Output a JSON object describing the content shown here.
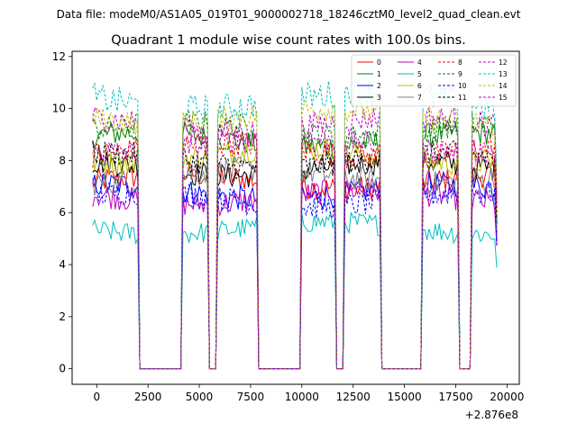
{
  "figure": {
    "suptitle": "Data file: modeM0/AS1A05_019T01_9000002718_18246cztM0_level2_quad_clean.evt",
    "offset_label": "+2.876e8"
  },
  "chart_data": {
    "type": "line",
    "title": "Quadrant 1 module wise count rates with 100.0s bins.",
    "xlabel": "",
    "ylabel": "",
    "x_offset": 287600000,
    "xlim": [
      -1200,
      20600
    ],
    "ylim": [
      -0.6,
      12.2
    ],
    "xticks": [
      0,
      2500,
      5000,
      7500,
      10000,
      12500,
      15000,
      17500,
      20000
    ],
    "yticks": [
      0,
      2,
      4,
      6,
      8,
      10,
      12
    ],
    "xtick_labels": [
      "0",
      "2500",
      "5000",
      "7500",
      "10000",
      "12500",
      "15000",
      "17500",
      "20000"
    ],
    "ytick_labels": [
      "0",
      "2",
      "4",
      "6",
      "8",
      "10",
      "12"
    ],
    "grid": false,
    "legend_position": "top-right",
    "legend_columns": 4,
    "x_start": -200,
    "x_step": 100,
    "active_intervals": [
      [
        -200,
        2000
      ],
      [
        4200,
        5400
      ],
      [
        5900,
        7800
      ],
      [
        10000,
        11600
      ],
      [
        12100,
        13800
      ],
      [
        15900,
        17600
      ],
      [
        18300,
        19500
      ]
    ],
    "series": [
      {
        "name": "0",
        "color": "#ff0000",
        "dash": "solid",
        "mean": 7.2,
        "amp": 0.35
      },
      {
        "name": "1",
        "color": "#008000",
        "dash": "solid",
        "mean": 8.8,
        "amp": 0.35
      },
      {
        "name": "2",
        "color": "#0000ff",
        "dash": "solid",
        "mean": 6.8,
        "amp": 0.35
      },
      {
        "name": "3",
        "color": "#000000",
        "dash": "solid",
        "mean": 7.7,
        "amp": 0.35
      },
      {
        "name": "4",
        "color": "#bf00bf",
        "dash": "solid",
        "mean": 6.6,
        "amp": 0.35
      },
      {
        "name": "5",
        "color": "#00bfbf",
        "dash": "solid",
        "mean": 5.4,
        "amp": 0.3
      },
      {
        "name": "6",
        "color": "#bfbf00",
        "dash": "solid",
        "mean": 8.2,
        "amp": 0.35
      },
      {
        "name": "7",
        "color": "#808080",
        "dash": "solid",
        "mean": 7.4,
        "amp": 0.35
      },
      {
        "name": "8",
        "color": "#ff0000",
        "dash": "dashed",
        "mean": 8.4,
        "amp": 0.35
      },
      {
        "name": "9",
        "color": "#008000",
        "dash": "dashed",
        "mean": 9.2,
        "amp": 0.35
      },
      {
        "name": "10",
        "color": "#0000ff",
        "dash": "dashed",
        "mean": 6.5,
        "amp": 0.35
      },
      {
        "name": "11",
        "color": "#000000",
        "dash": "dashed",
        "mean": 8.0,
        "amp": 0.35
      },
      {
        "name": "12",
        "color": "#bf00bf",
        "dash": "dashed",
        "mean": 9.4,
        "amp": 0.35
      },
      {
        "name": "13",
        "color": "#00bfbf",
        "dash": "dashed",
        "mean": 10.3,
        "amp": 0.4
      },
      {
        "name": "14",
        "color": "#bfbf00",
        "dash": "dashed",
        "mean": 9.7,
        "amp": 0.35
      },
      {
        "name": "15",
        "color": "#bf00bf",
        "dash": "dashed",
        "mean": 8.6,
        "amp": 0.35
      }
    ]
  }
}
